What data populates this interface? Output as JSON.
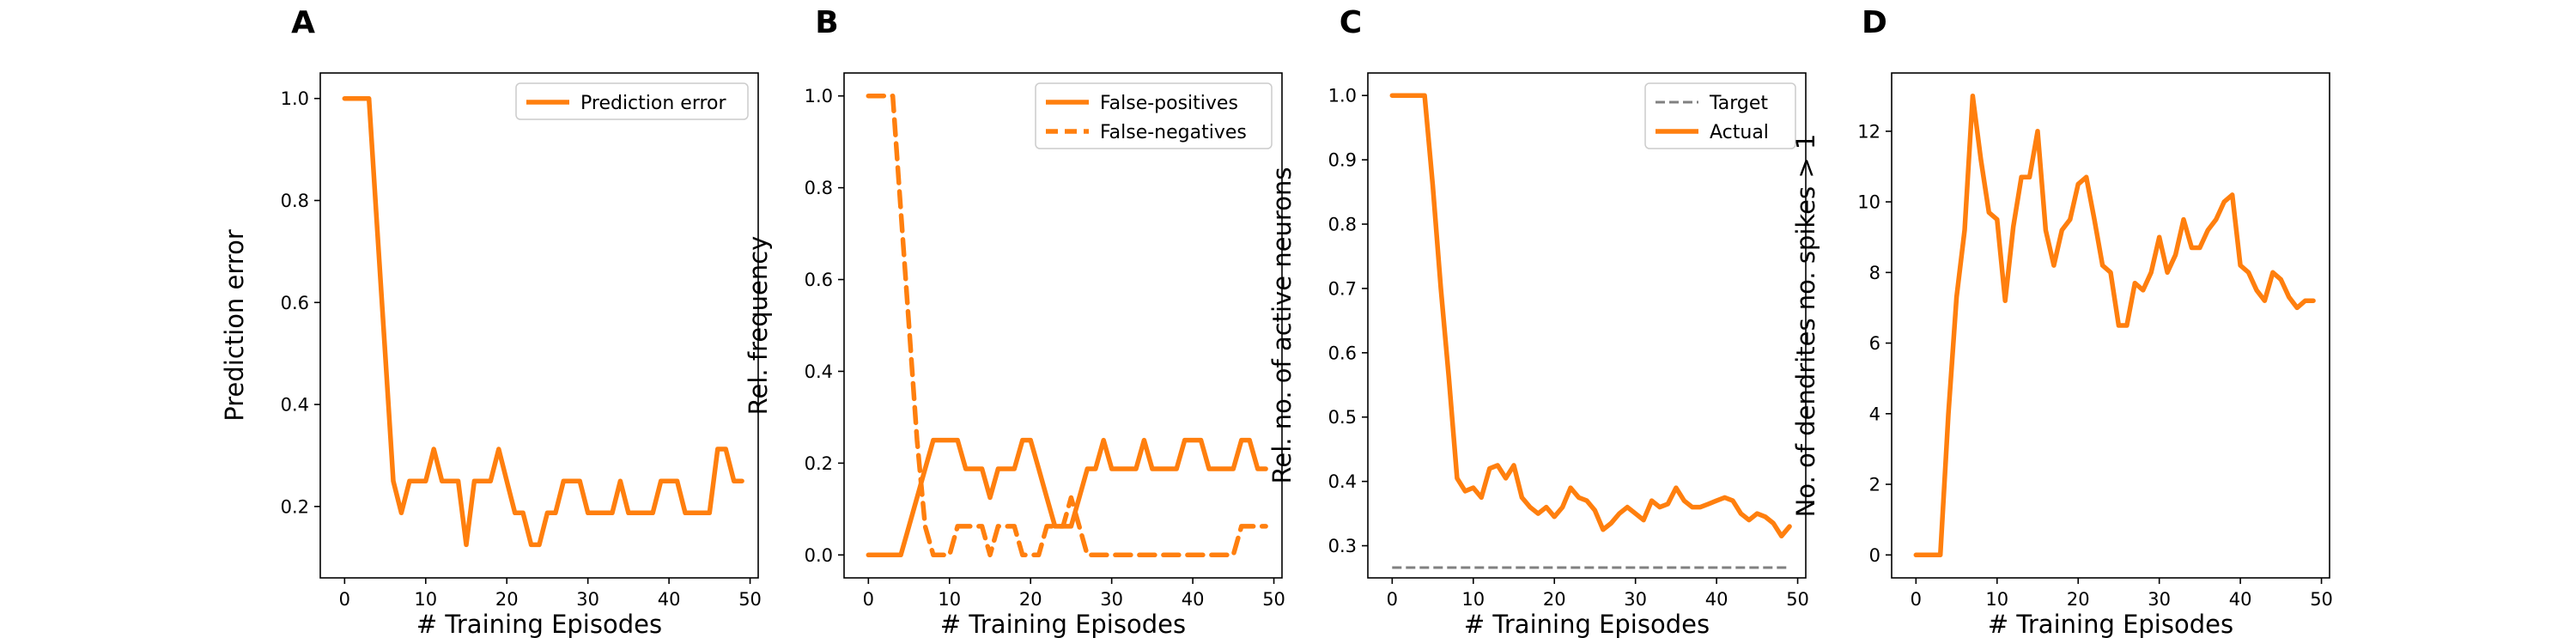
{
  "chart_data": [
    {
      "type": "line",
      "panel": "A",
      "xlabel": "# Training Episodes",
      "ylabel": "Prediction error",
      "xlim": [
        -3,
        51
      ],
      "ylim": [
        0.06,
        1.05
      ],
      "xticks": [
        0,
        10,
        20,
        30,
        40,
        50
      ],
      "yticks": [
        0.2,
        0.4,
        0.6,
        0.8,
        1.0
      ],
      "ytick_labels": [
        "0.2",
        "0.4",
        "0.6",
        "0.8",
        "1.0"
      ],
      "legend_position": "top-right",
      "grid": false,
      "series": [
        {
          "name": "Prediction error",
          "color": "#ff7f0e",
          "style": "solid",
          "x": [
            0,
            1,
            2,
            3,
            4,
            5,
            6,
            7,
            8,
            9,
            10,
            11,
            12,
            13,
            14,
            15,
            16,
            17,
            18,
            19,
            20,
            21,
            22,
            23,
            24,
            25,
            26,
            27,
            28,
            29,
            30,
            31,
            32,
            33,
            34,
            35,
            36,
            37,
            38,
            39,
            40,
            41,
            42,
            43,
            44,
            45,
            46,
            47,
            48,
            49
          ],
          "y": [
            1.0,
            1.0,
            1.0,
            1.0,
            0.75,
            0.5,
            0.25,
            0.1875,
            0.25,
            0.25,
            0.25,
            0.3125,
            0.25,
            0.25,
            0.25,
            0.125,
            0.25,
            0.25,
            0.25,
            0.3125,
            0.25,
            0.1875,
            0.1875,
            0.125,
            0.125,
            0.1875,
            0.1875,
            0.25,
            0.25,
            0.25,
            0.1875,
            0.1875,
            0.1875,
            0.1875,
            0.25,
            0.1875,
            0.1875,
            0.1875,
            0.1875,
            0.25,
            0.25,
            0.25,
            0.1875,
            0.1875,
            0.1875,
            0.1875,
            0.3125,
            0.3125,
            0.25,
            0.25
          ]
        }
      ]
    },
    {
      "type": "line",
      "panel": "B",
      "xlabel": "# Training Episodes",
      "ylabel": "Rel. frequency",
      "xlim": [
        -3,
        51
      ],
      "ylim": [
        -0.05,
        1.05
      ],
      "xticks": [
        0,
        10,
        20,
        30,
        40,
        50
      ],
      "yticks": [
        0.0,
        0.2,
        0.4,
        0.6,
        0.8,
        1.0
      ],
      "ytick_labels": [
        "0.0",
        "0.2",
        "0.4",
        "0.6",
        "0.8",
        "1.0"
      ],
      "legend_position": "top-right",
      "grid": false,
      "series": [
        {
          "name": "False-positives",
          "color": "#ff7f0e",
          "style": "solid",
          "x": [
            0,
            1,
            2,
            3,
            4,
            5,
            6,
            7,
            8,
            9,
            10,
            11,
            12,
            13,
            14,
            15,
            16,
            17,
            18,
            19,
            20,
            21,
            22,
            23,
            24,
            25,
            26,
            27,
            28,
            29,
            30,
            31,
            32,
            33,
            34,
            35,
            36,
            37,
            38,
            39,
            40,
            41,
            42,
            43,
            44,
            45,
            46,
            47,
            48,
            49
          ],
          "y": [
            0,
            0,
            0,
            0,
            0,
            0.0625,
            0.125,
            0.1875,
            0.25,
            0.25,
            0.25,
            0.25,
            0.1875,
            0.1875,
            0.1875,
            0.125,
            0.1875,
            0.1875,
            0.1875,
            0.25,
            0.25,
            0.1875,
            0.125,
            0.0625,
            0.0625,
            0.0625,
            0.125,
            0.1875,
            0.1875,
            0.25,
            0.1875,
            0.1875,
            0.1875,
            0.1875,
            0.25,
            0.1875,
            0.1875,
            0.1875,
            0.1875,
            0.25,
            0.25,
            0.25,
            0.1875,
            0.1875,
            0.1875,
            0.1875,
            0.25,
            0.25,
            0.1875,
            0.1875
          ]
        },
        {
          "name": "False-negatives",
          "color": "#ff7f0e",
          "style": "dashed",
          "x": [
            0,
            1,
            2,
            3,
            4,
            5,
            6,
            7,
            8,
            9,
            10,
            11,
            12,
            13,
            14,
            15,
            16,
            17,
            18,
            19,
            20,
            21,
            22,
            23,
            24,
            25,
            26,
            27,
            28,
            29,
            30,
            31,
            32,
            33,
            34,
            35,
            36,
            37,
            38,
            39,
            40,
            41,
            42,
            43,
            44,
            45,
            46,
            47,
            48,
            49
          ],
          "y": [
            1.0,
            1.0,
            1.0,
            1.0,
            0.75,
            0.5,
            0.25,
            0.0625,
            0,
            0,
            0,
            0.0625,
            0.0625,
            0.0625,
            0.0625,
            0,
            0.0625,
            0.0625,
            0.0625,
            0,
            0,
            0,
            0.0625,
            0.0625,
            0.0625,
            0.125,
            0.0625,
            0,
            0,
            0,
            0,
            0,
            0,
            0,
            0,
            0,
            0,
            0,
            0,
            0,
            0,
            0,
            0,
            0,
            0,
            0,
            0.0625,
            0.0625,
            0.0625,
            0.0625
          ]
        }
      ]
    },
    {
      "type": "line",
      "panel": "C",
      "xlabel": "# Training Episodes",
      "ylabel": "Rel. no. of active neurons",
      "xlim": [
        -3,
        51
      ],
      "ylim": [
        0.25,
        1.035
      ],
      "xticks": [
        0,
        10,
        20,
        30,
        40,
        50
      ],
      "yticks": [
        0.3,
        0.4,
        0.5,
        0.6,
        0.7,
        0.8,
        0.9,
        1.0
      ],
      "ytick_labels": [
        "0.3",
        "0.4",
        "0.5",
        "0.6",
        "0.7",
        "0.8",
        "0.9",
        "1.0"
      ],
      "legend_position": "top-right",
      "grid": false,
      "series": [
        {
          "name": "Target",
          "color": "#808080",
          "style": "dashed",
          "x": [
            0,
            49
          ],
          "y": [
            0.266,
            0.266
          ]
        },
        {
          "name": "Actual",
          "color": "#ff7f0e",
          "style": "solid",
          "x": [
            0,
            1,
            2,
            3,
            4,
            5,
            6,
            7,
            8,
            9,
            10,
            11,
            12,
            13,
            14,
            15,
            16,
            17,
            18,
            19,
            20,
            21,
            22,
            23,
            24,
            25,
            26,
            27,
            28,
            29,
            30,
            31,
            32,
            33,
            34,
            35,
            36,
            37,
            38,
            39,
            40,
            41,
            42,
            43,
            44,
            45,
            46,
            47,
            48,
            49
          ],
          "y": [
            1.0,
            1.0,
            1.0,
            1.0,
            1.0,
            0.86,
            0.7,
            0.56,
            0.405,
            0.385,
            0.39,
            0.375,
            0.42,
            0.425,
            0.405,
            0.425,
            0.375,
            0.36,
            0.35,
            0.36,
            0.345,
            0.36,
            0.39,
            0.375,
            0.37,
            0.355,
            0.325,
            0.335,
            0.35,
            0.36,
            0.35,
            0.34,
            0.37,
            0.36,
            0.365,
            0.39,
            0.37,
            0.36,
            0.36,
            0.365,
            0.37,
            0.375,
            0.37,
            0.35,
            0.34,
            0.35,
            0.345,
            0.335,
            0.315,
            0.33
          ]
        }
      ]
    },
    {
      "type": "line",
      "panel": "D",
      "xlabel": "# Training Episodes",
      "ylabel": "No. of dendrites no. spikes > 1",
      "xlim": [
        -3,
        51
      ],
      "ylim": [
        -0.65,
        13.65
      ],
      "xticks": [
        0,
        10,
        20,
        30,
        40,
        50
      ],
      "yticks": [
        0,
        2,
        4,
        6,
        8,
        10,
        12
      ],
      "ytick_labels": [
        "0",
        "2",
        "4",
        "6",
        "8",
        "10",
        "12"
      ],
      "grid": false,
      "series": [
        {
          "color": "#ff7f0e",
          "style": "solid",
          "x": [
            0,
            1,
            2,
            3,
            4,
            5,
            6,
            7,
            8,
            9,
            10,
            11,
            12,
            13,
            14,
            15,
            16,
            17,
            18,
            19,
            20,
            21,
            22,
            23,
            24,
            25,
            26,
            27,
            28,
            29,
            30,
            31,
            32,
            33,
            34,
            35,
            36,
            37,
            38,
            39,
            40,
            41,
            42,
            43,
            44,
            45,
            46,
            47,
            48,
            49
          ],
          "y": [
            0,
            0,
            0,
            0,
            4,
            7.3,
            9.2,
            13,
            11.2,
            9.7,
            9.5,
            7.2,
            9.3,
            10.7,
            10.7,
            12,
            9.2,
            8.2,
            9.2,
            9.5,
            10.5,
            10.7,
            9.5,
            8.2,
            8,
            6.5,
            6.5,
            7.7,
            7.5,
            8,
            9,
            8,
            8.5,
            9.5,
            8.7,
            8.7,
            9.2,
            9.5,
            10,
            10.2,
            8.2,
            8,
            7.5,
            7.2,
            8,
            7.8,
            7.3,
            7,
            7.2,
            7.2
          ]
        }
      ]
    }
  ]
}
